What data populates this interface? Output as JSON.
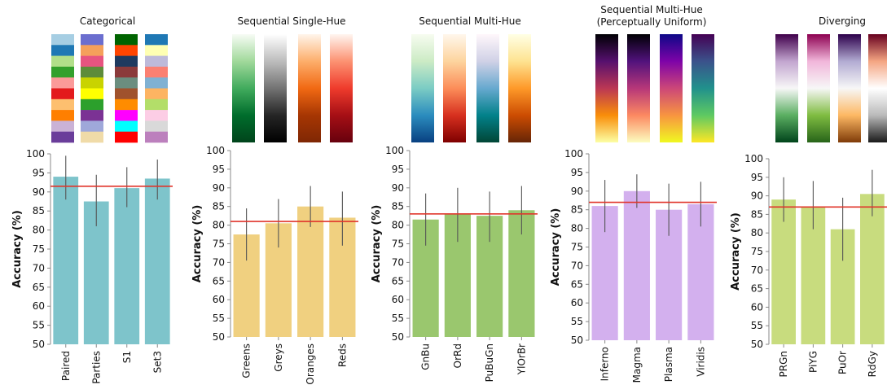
{
  "chart_data": [
    {
      "type": "bar",
      "title": "Categorical",
      "ylabel": "Accuracy (%)",
      "ylim": [
        50,
        100
      ],
      "yticks": [
        50,
        55,
        60,
        65,
        70,
        75,
        80,
        85,
        90,
        95,
        100
      ],
      "bar_color": "#7ec4cb",
      "categories": [
        "Paired",
        "Parties",
        "S1",
        "Set3"
      ],
      "values": [
        94,
        87.5,
        91,
        93.5
      ],
      "error_low": [
        88,
        81,
        86,
        88
      ],
      "error_high": [
        99.5,
        94.5,
        96.5,
        98.5
      ],
      "mean_line": 91.5,
      "palettes": [
        [
          "#a6cee3",
          "#1f78b4",
          "#b2df8a",
          "#33a02c",
          "#fb9a99",
          "#e31a1c",
          "#fdbf6f",
          "#ff7f00",
          "#cab2d6",
          "#6a3d9a"
        ],
        [
          "#6b6ecf",
          "#f5a05b",
          "#e75480",
          "#5e8c3a",
          "#c9d300",
          "#ffff00",
          "#2ca02c",
          "#7b3294",
          "#9fa8da",
          "#f0dba8"
        ],
        [
          "#006400",
          "#ff4500",
          "#1e3a5f",
          "#8b3a3a",
          "#6b8e7f",
          "#a0522d",
          "#ff8c00",
          "#ff00ff",
          "#00ffff",
          "#ff0000"
        ],
        [
          "#1f78b4",
          "#ffffb3",
          "#bebada",
          "#fb8072",
          "#80b1d3",
          "#fdb462",
          "#b3de69",
          "#fccde5",
          "#d9d9d9",
          "#bc80bd"
        ]
      ]
    },
    {
      "type": "bar",
      "title": "Sequential Single-Hue",
      "ylabel": "Accuracy (%)",
      "ylim": [
        50,
        100
      ],
      "yticks": [
        50,
        55,
        60,
        65,
        70,
        75,
        80,
        85,
        90,
        95,
        100
      ],
      "bar_color": "#f0d080",
      "categories": [
        "Greens",
        "Greys",
        "Oranges",
        "Reds"
      ],
      "values": [
        77.5,
        80.5,
        85,
        82
      ],
      "error_low": [
        70.5,
        74,
        79.5,
        74.5
      ],
      "error_high": [
        84.5,
        87,
        90.5,
        89
      ],
      "mean_line": 81,
      "palettes": [
        [
          "#f7fcf5",
          "#a1d99b",
          "#41ab5d",
          "#006d2c",
          "#00441b"
        ],
        [
          "#ffffff",
          "#bdbdbd",
          "#737373",
          "#252525",
          "#000000"
        ],
        [
          "#fff5eb",
          "#fdae6b",
          "#f16913",
          "#a63603",
          "#7f2704"
        ],
        [
          "#fff5f0",
          "#fc9272",
          "#ef3b2c",
          "#a50f15",
          "#67000d"
        ]
      ]
    },
    {
      "type": "bar",
      "title": "Sequential Multi-Hue",
      "ylabel": "Accuracy (%)",
      "ylim": [
        50,
        100
      ],
      "yticks": [
        50,
        55,
        60,
        65,
        70,
        75,
        80,
        85,
        90,
        95,
        100
      ],
      "bar_color": "#9ac76e",
      "categories": [
        "GnBu",
        "OrRd",
        "PuBuGn",
        "YlOrBr"
      ],
      "values": [
        81.5,
        83,
        82.5,
        84
      ],
      "error_low": [
        74.5,
        75.5,
        75.5,
        77.5
      ],
      "error_high": [
        88.5,
        90,
        89,
        90.5
      ],
      "mean_line": 83,
      "palettes": [
        [
          "#f7fcf0",
          "#ccebc5",
          "#7bccc4",
          "#2b8cbe",
          "#084081"
        ],
        [
          "#fff7ec",
          "#fdd49e",
          "#fc8d59",
          "#d7301f",
          "#7f0000"
        ],
        [
          "#fff7fb",
          "#d0d1e6",
          "#67a9cf",
          "#02818a",
          "#014636"
        ],
        [
          "#ffffe5",
          "#fee391",
          "#fe9929",
          "#cc4c02",
          "#662506"
        ]
      ]
    },
    {
      "type": "bar",
      "title": "Sequential Multi-Hue\n(Perceptually Uniform)",
      "ylabel": "Accuracy (%)",
      "ylim": [
        50,
        100
      ],
      "yticks": [
        50,
        55,
        60,
        65,
        70,
        75,
        80,
        85,
        90,
        95,
        100
      ],
      "bar_color": "#d3b0ee",
      "categories": [
        "Inferno",
        "Magma",
        "Plasma",
        "Viridis"
      ],
      "values": [
        86,
        90,
        85,
        86.5
      ],
      "error_low": [
        79,
        85.5,
        78,
        80.5
      ],
      "error_high": [
        93,
        94.5,
        92,
        92.5
      ],
      "mean_line": 87,
      "palettes": [
        [
          "#000004",
          "#56106e",
          "#bb3754",
          "#f98e09",
          "#fcffa4"
        ],
        [
          "#000004",
          "#51127c",
          "#b73779",
          "#fc8961",
          "#fcfdbf"
        ],
        [
          "#0d0887",
          "#7e03a8",
          "#cc4778",
          "#f89540",
          "#f0f921"
        ],
        [
          "#440154",
          "#3b528b",
          "#21918c",
          "#5ec962",
          "#fde725"
        ]
      ]
    },
    {
      "type": "bar",
      "title": "Diverging",
      "ylabel": "Accuracy (%)",
      "ylim": [
        50,
        100
      ],
      "yticks": [
        50,
        55,
        60,
        65,
        70,
        75,
        80,
        85,
        90,
        95,
        100
      ],
      "bar_color": "#c8dc7e",
      "categories": [
        "PRGn",
        "PiYG",
        "PuOr",
        "RdGy"
      ],
      "values": [
        89,
        87,
        81,
        90.5
      ],
      "error_low": [
        83,
        81,
        72.5,
        84.5
      ],
      "error_high": [
        95,
        94,
        89.5,
        97
      ],
      "mean_line": 87,
      "palettes": [
        [
          "#40004b",
          "#c2a5cf",
          "#f7f7f7",
          "#5aae61",
          "#00441b"
        ],
        [
          "#8e0152",
          "#f1b6da",
          "#f7f7f7",
          "#7fbc41",
          "#276419"
        ],
        [
          "#2d004b",
          "#b2abd2",
          "#f7f7f7",
          "#fdb863",
          "#7f3b08"
        ],
        [
          "#67001f",
          "#f4a582",
          "#ffffff",
          "#bababa",
          "#1a1a1a"
        ]
      ]
    }
  ]
}
